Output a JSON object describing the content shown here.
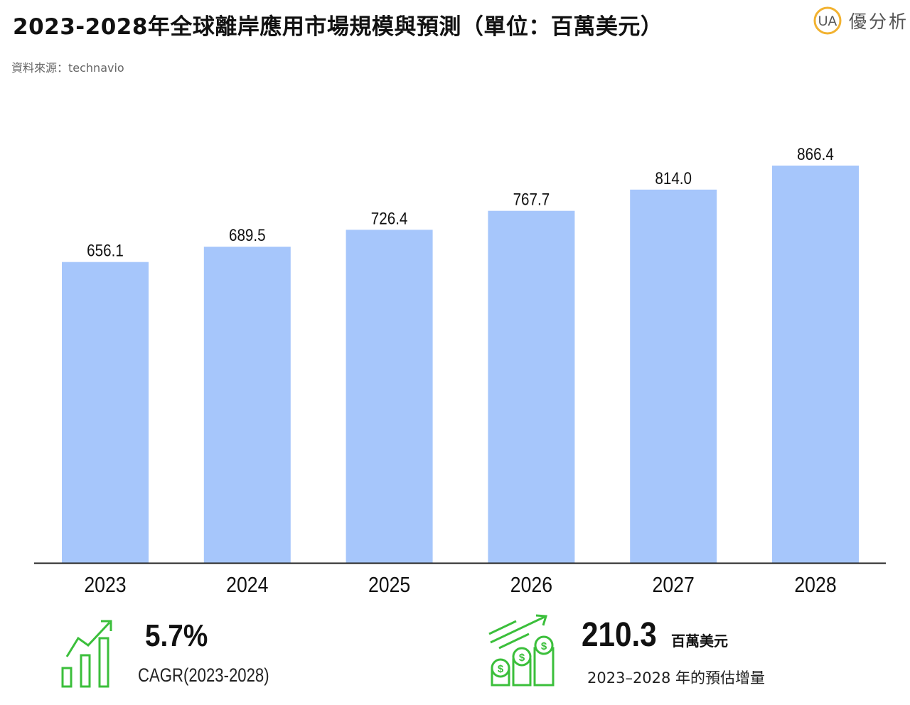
{
  "header": {
    "title": "2023-2028年全球離岸應用市場規模與預測（單位：百萬美元）",
    "source": "資料來源：technavio",
    "logo_mark": "UA",
    "logo_text": "優分析"
  },
  "chart_data": {
    "type": "bar",
    "title": "2023-2028年全球離岸應用市場規模與預測（單位：百萬美元）",
    "categories": [
      "2023",
      "2024",
      "2025",
      "2026",
      "2027",
      "2028"
    ],
    "values": [
      656.1,
      689.5,
      726.4,
      767.7,
      814.0,
      866.4
    ],
    "value_labels": [
      "656.1",
      "689.5",
      "726.4",
      "767.7",
      "814.0",
      "866.4"
    ],
    "unit": "百萬美元",
    "ylim": [
      0,
      900
    ],
    "grid": false,
    "bar_color": "#a6c6fb"
  },
  "kpis": {
    "cagr": {
      "value": "5.7%",
      "label": "CAGR(2023-2028)",
      "icon": "growth-bars-icon"
    },
    "increment": {
      "value": "210.3",
      "unit": "百萬美元",
      "label": "2023–2028 年的預估增量",
      "icon": "dollar-coins-growth-icon"
    }
  },
  "colors": {
    "bar": "#a6c6fb",
    "axis": "#222222",
    "icon_green": "#3bbf3b",
    "logo_ring": "#f2b230"
  }
}
